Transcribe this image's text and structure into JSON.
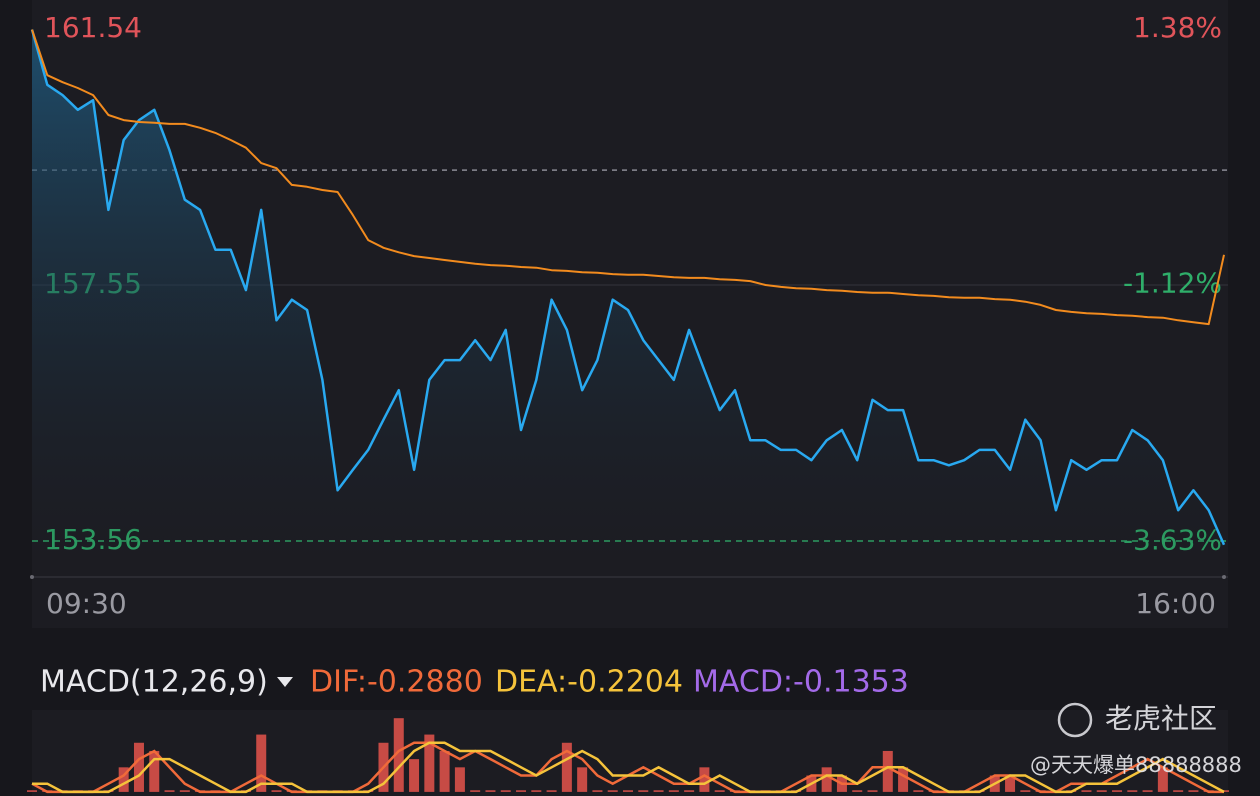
{
  "chart_data": [
    {
      "type": "line",
      "x": [
        0,
        5,
        10,
        15,
        20,
        25,
        30,
        35,
        40,
        45,
        50,
        55,
        60,
        65,
        70,
        75,
        80,
        85,
        90,
        95,
        100,
        105,
        110,
        115,
        120,
        125,
        130,
        135,
        140,
        145,
        150,
        155,
        160,
        165,
        170,
        175,
        180,
        185,
        190,
        195,
        200,
        205,
        210,
        215,
        220,
        225,
        230,
        235,
        240,
        245,
        250,
        255,
        260,
        265,
        270,
        275,
        280,
        285,
        290,
        295,
        300,
        305,
        310,
        315,
        320,
        325,
        330,
        335,
        340,
        345,
        350,
        355,
        360,
        365,
        370,
        375,
        380,
        385,
        390
      ],
      "xlim": [
        0,
        390
      ],
      "xticks": [
        {
          "value": 0,
          "label": "09:30"
        },
        {
          "value": 390,
          "label": "16:00"
        }
      ],
      "ylim": [
        153.03,
        161.68
      ],
      "yticks": [
        153.56,
        157.55,
        161.54
      ],
      "y2lim": [
        -3.96,
        1.47
      ],
      "y2ticks": [
        {
          "value": -3.63,
          "label": "-3.63%"
        },
        {
          "value": -1.12,
          "label": "-1.12%"
        },
        {
          "value": 1.38,
          "label": "1.38%"
        }
      ],
      "baseline": 159.34,
      "label_colors": {
        "up": "#e0545a",
        "down": "#2fae6a"
      },
      "series": [
        {
          "color": "#29a9f0",
          "values": [
            161.53,
            160.67,
            160.51,
            160.28,
            160.43,
            158.72,
            159.81,
            160.12,
            160.28,
            159.65,
            158.88,
            158.72,
            158.1,
            158.1,
            157.47,
            158.72,
            157.0,
            157.32,
            157.16,
            156.07,
            154.35,
            154.67,
            154.98,
            155.45,
            155.91,
            154.67,
            156.07,
            156.38,
            156.38,
            156.69,
            156.38,
            156.85,
            155.29,
            156.07,
            157.32,
            156.85,
            155.91,
            156.38,
            157.32,
            157.16,
            156.69,
            156.38,
            156.07,
            156.85,
            156.22,
            155.6,
            155.91,
            155.13,
            155.13,
            154.98,
            154.98,
            154.82,
            155.13,
            155.29,
            154.82,
            155.76,
            155.6,
            155.6,
            154.82,
            154.82,
            154.74,
            154.82,
            154.98,
            154.98,
            154.67,
            155.45,
            155.13,
            154.04,
            154.82,
            154.67,
            154.82,
            154.82,
            155.29,
            155.13,
            154.82,
            154.04,
            154.35,
            154.04,
            153.5
          ]
        },
        {
          "color": "#f28b1e",
          "values": [
            161.53,
            160.82,
            160.71,
            160.62,
            160.51,
            160.2,
            160.12,
            160.09,
            160.08,
            160.06,
            160.06,
            160.0,
            159.92,
            159.81,
            159.69,
            159.45,
            159.37,
            159.11,
            159.08,
            159.03,
            159.0,
            158.64,
            158.25,
            158.13,
            158.06,
            158.0,
            157.97,
            157.94,
            157.91,
            157.88,
            157.86,
            157.85,
            157.83,
            157.82,
            157.78,
            157.77,
            157.75,
            157.74,
            157.72,
            157.71,
            157.71,
            157.69,
            157.67,
            157.66,
            157.66,
            157.64,
            157.63,
            157.61,
            157.55,
            157.52,
            157.5,
            157.49,
            157.47,
            157.46,
            157.44,
            157.43,
            157.43,
            157.41,
            157.39,
            157.38,
            157.36,
            157.35,
            157.35,
            157.33,
            157.32,
            157.29,
            157.24,
            157.16,
            157.13,
            157.11,
            157.1,
            157.08,
            157.07,
            157.05,
            157.04,
            157.0,
            156.97,
            156.94,
            158.02
          ]
        }
      ]
    },
    {
      "type": "macd",
      "title": "MACD(12,26,9)",
      "dif_label": "DIF:-0.2880",
      "dea_label": "DEA:-0.2204",
      "macd_label": "MACD:-0.1353",
      "ylim": [
        -0.005,
        0.1
      ],
      "series": [
        {
          "color": "#e5534b",
          "values": [
            0.002,
            0.002,
            0.002,
            0.002,
            0.002,
            0.002,
            0.03,
            0.06,
            0.05,
            0.002,
            0.002,
            0.002,
            0.002,
            0.002,
            0.002,
            0.07,
            0.002,
            0.002,
            0.002,
            0.002,
            0.002,
            0.002,
            0.002,
            0.06,
            0.09,
            0.04,
            0.07,
            0.05,
            0.03,
            0.002,
            0.002,
            0.002,
            0.002,
            0.002,
            0.002,
            0.06,
            0.03,
            0.002,
            0.002,
            0.002,
            0.002,
            0.002,
            0.002,
            0.002,
            0.03,
            0.002,
            0.002,
            0.002,
            0.002,
            0.002,
            0.002,
            0.02,
            0.03,
            0.02,
            0.002,
            0.002,
            0.05,
            0.03,
            0.002,
            0.002,
            0.002,
            0.002,
            0.002,
            0.02,
            0.02,
            0.002,
            0.002,
            0.002,
            0.002,
            0.002,
            0.002,
            0.002,
            0.002,
            0.002,
            0.03,
            0.002,
            0.002,
            0.002,
            0.002
          ]
        },
        {
          "color": "#f06a3a",
          "values": [
            0.01,
            0,
            0,
            0,
            0,
            0.01,
            0.02,
            0.04,
            0.05,
            0.03,
            0.01,
            0,
            0,
            0,
            0.01,
            0.02,
            0.01,
            0,
            0,
            0,
            0,
            0,
            0.01,
            0.03,
            0.05,
            0.06,
            0.06,
            0.05,
            0.04,
            0.05,
            0.04,
            0.03,
            0.02,
            0.02,
            0.04,
            0.05,
            0.04,
            0.02,
            0.01,
            0.02,
            0.03,
            0.02,
            0.01,
            0.01,
            0.02,
            0.01,
            0,
            0,
            0,
            0,
            0.01,
            0.02,
            0.02,
            0.01,
            0.01,
            0.03,
            0.03,
            0.02,
            0.01,
            0,
            0,
            0,
            0.01,
            0.02,
            0.02,
            0.01,
            0,
            0,
            0.01,
            0.01,
            0.01,
            0.02,
            0.03,
            0.04,
            0.03,
            0.02,
            0.01,
            0,
            0
          ]
        },
        {
          "color": "#f5c33b",
          "values": [
            0.01,
            0.01,
            0,
            0,
            0,
            0,
            0.01,
            0.02,
            0.04,
            0.04,
            0.03,
            0.02,
            0.01,
            0,
            0,
            0.01,
            0.01,
            0.01,
            0,
            0,
            0,
            0,
            0,
            0.01,
            0.03,
            0.05,
            0.06,
            0.06,
            0.05,
            0.05,
            0.05,
            0.04,
            0.03,
            0.02,
            0.03,
            0.04,
            0.05,
            0.04,
            0.02,
            0.02,
            0.02,
            0.03,
            0.02,
            0.01,
            0.01,
            0.02,
            0.01,
            0,
            0,
            0,
            0,
            0.01,
            0.02,
            0.02,
            0.01,
            0.02,
            0.03,
            0.03,
            0.02,
            0.01,
            0,
            0,
            0,
            0.01,
            0.02,
            0.02,
            0.01,
            0,
            0,
            0.01,
            0.01,
            0.01,
            0.02,
            0.03,
            0.04,
            0.03,
            0.02,
            0.01,
            0
          ]
        }
      ]
    }
  ],
  "watermark": {
    "brand": "老虎社区",
    "user": "@天天爆单88888888"
  }
}
